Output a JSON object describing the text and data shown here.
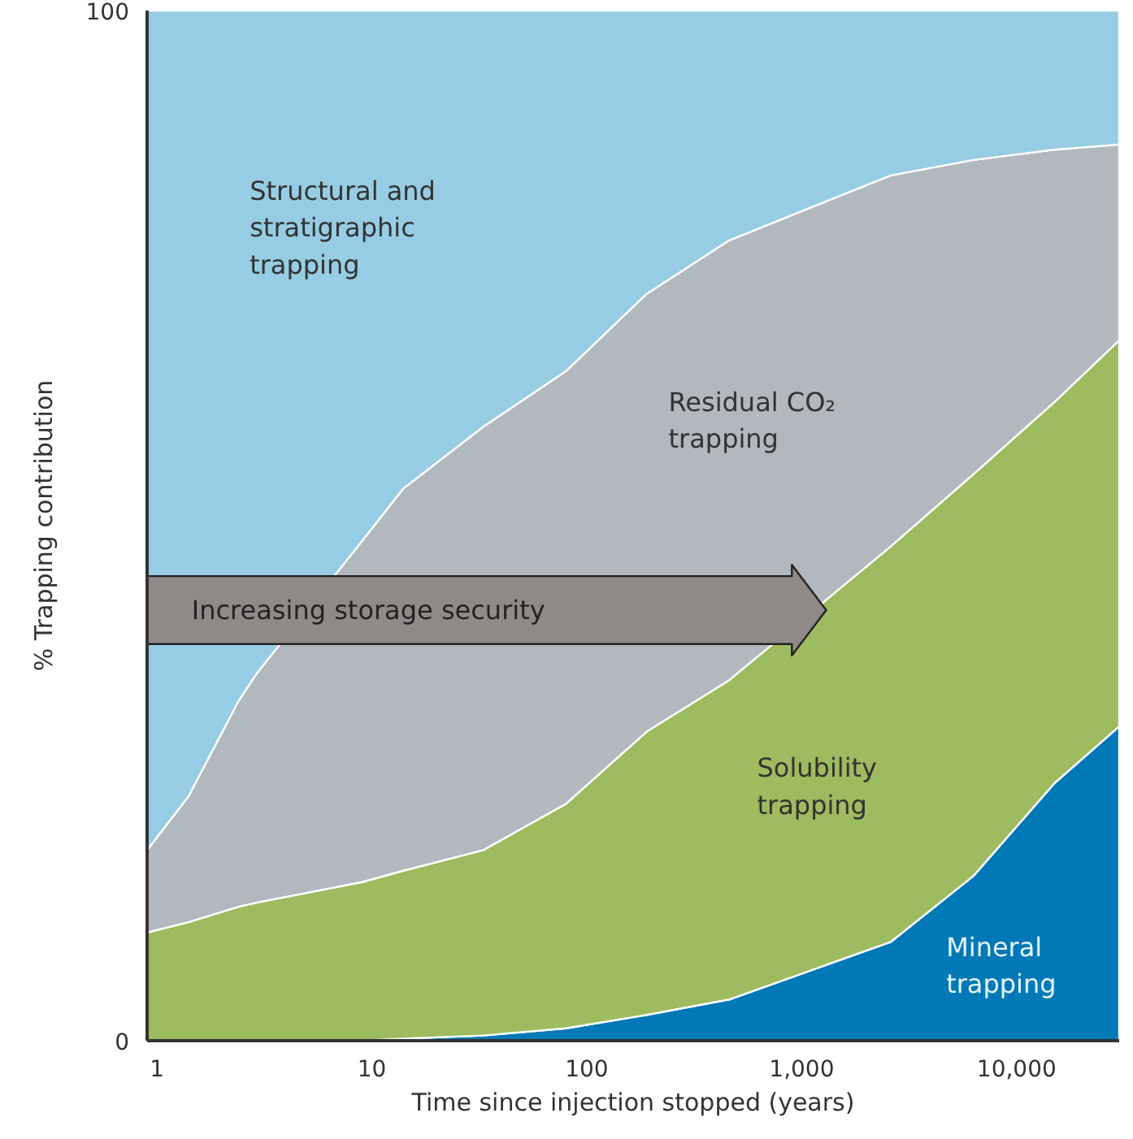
{
  "chart_data": {
    "type": "area",
    "stacked": true,
    "log": "x",
    "xlabel": "Time since injection stopped (years)",
    "ylabel": "% Trapping contribution",
    "x": [
      0.9,
      1.4,
      2.4,
      2.9,
      9,
      14,
      33,
      80,
      190,
      460,
      2600,
      6300,
      15000,
      30000
    ],
    "series": [
      {
        "name": "Mineral trapping",
        "color": "#0079b6",
        "values": [
          0,
          0,
          0,
          0,
          0,
          0.2,
          0.5,
          1.2,
          2.5,
          4,
          9.6,
          16,
          25,
          30.5
        ]
      },
      {
        "name": "Solubility trapping",
        "color": "#9dbb5f",
        "values": [
          10.5,
          11.5,
          13,
          13.4,
          15.4,
          16.3,
          18,
          21.8,
          27.5,
          31,
          38.4,
          39,
          37,
          37.5
        ]
      },
      {
        "name": "Residual CO₂ trapping",
        "color": "#b1b8be",
        "values": [
          8,
          12.2,
          20,
          22.2,
          33.1,
          37.1,
          41.1,
          42,
          42.5,
          42.7,
          36,
          30.5,
          24.5,
          19
        ]
      },
      {
        "name": "Structural and stratigraphic trapping",
        "color": "#96cde4",
        "values": [
          81.5,
          76.3,
          67,
          64.4,
          51.5,
          46.4,
          40.4,
          35,
          27.5,
          22.3,
          16,
          14.5,
          13.5,
          13
        ]
      }
    ],
    "annotations": [
      "Increasing storage security"
    ],
    "xlim": [
      0.9,
      30000
    ],
    "ylim": [
      0,
      100
    ],
    "xticks": [
      {
        "value": 1,
        "label": "1"
      },
      {
        "value": 10,
        "label": "10"
      },
      {
        "value": 100,
        "label": "100"
      },
      {
        "value": 1000,
        "label": "1,000"
      },
      {
        "value": 10000,
        "label": "10,000"
      }
    ],
    "yticks": [
      0,
      100
    ],
    "legend": false
  }
}
